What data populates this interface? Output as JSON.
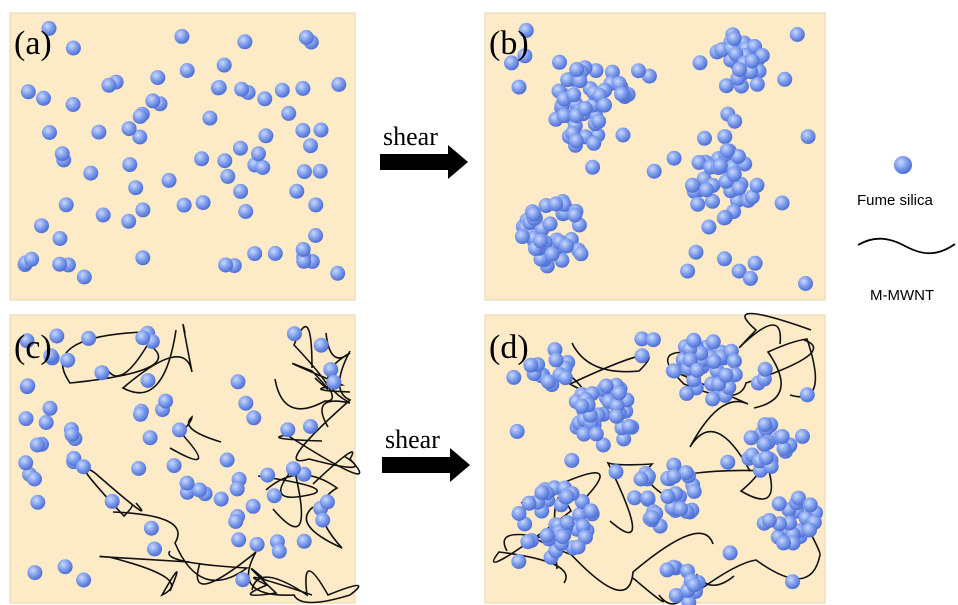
{
  "panels": [
    {
      "label": "(a)"
    },
    {
      "label": "(b)"
    },
    {
      "label": "(c)"
    },
    {
      "label": "(d)"
    }
  ],
  "arrows": [
    {
      "label": "shear"
    },
    {
      "label": "shear"
    }
  ],
  "legend": [
    {
      "label": "Fume silica"
    },
    {
      "label": "M-MWNT"
    }
  ]
}
